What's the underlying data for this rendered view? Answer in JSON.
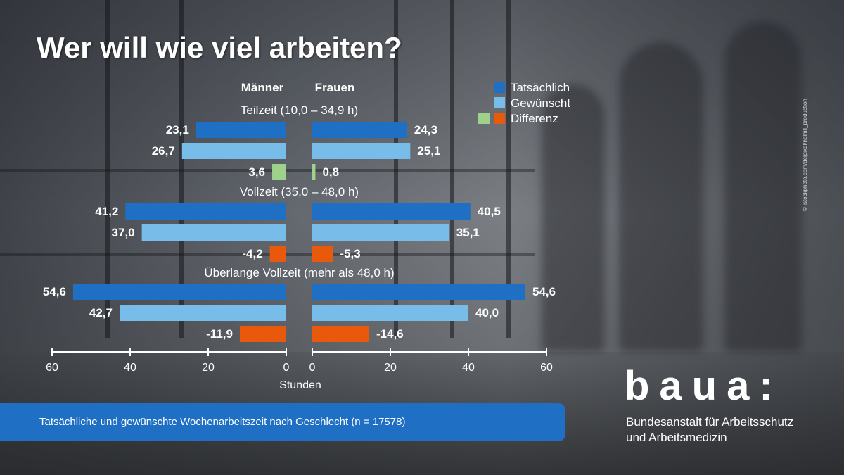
{
  "title": "Wer will wie viel arbeiten?",
  "caption": "Tatsächliche und gewünschte Wochenarbeitszeit nach Geschlecht (n = 17578)",
  "logo": {
    "word": "baua:",
    "org_line1": "Bundesanstalt für Arbeitsschutz",
    "org_line2": "und Arbeitsmedizin"
  },
  "photo_credit": "© istockphoto.com/delpixel/nolhill_production",
  "chart_data": {
    "type": "bar",
    "orientation": "horizontal-butterfly",
    "panels": [
      "Männer",
      "Frauen"
    ],
    "groups": [
      "Teilzeit (10,0 – 34,9 h)",
      "Vollzeit (35,0 – 48,0 h)",
      "Überlange Vollzeit (mehr als 48,0 h)"
    ],
    "series": [
      {
        "name": "Tatsächlich",
        "color": "#1f6fc4",
        "maenner": [
          23.1,
          41.2,
          54.6
        ],
        "frauen": [
          24.3,
          40.5,
          54.6
        ]
      },
      {
        "name": "Gewünscht",
        "color": "#78bdea",
        "maenner": [
          26.7,
          37.0,
          42.7
        ],
        "frauen": [
          25.1,
          35.1,
          40.0
        ]
      },
      {
        "name": "Differenz",
        "color_positive": "#9ed18a",
        "color_negative": "#e8590c",
        "maenner": [
          3.6,
          -4.2,
          -11.9
        ],
        "frauen": [
          0.8,
          -5.3,
          -14.6
        ]
      }
    ],
    "xlabel": "Stunden",
    "xlim": [
      0,
      60
    ],
    "xticks": [
      0,
      20,
      40,
      60
    ],
    "legend_position": "top-right",
    "grid": false,
    "decimal_separator": ","
  }
}
